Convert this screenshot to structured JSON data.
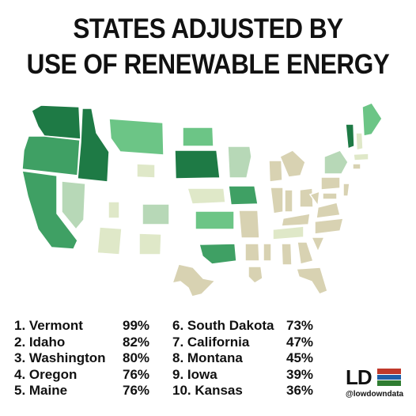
{
  "title": {
    "line1": "STATES ADJUSTED BY",
    "line2": "USE OF RENEWABLE ENERGY"
  },
  "rankings": [
    {
      "label": "1. Vermont",
      "value": "99%"
    },
    {
      "label": "2. Idaho",
      "value": "82%"
    },
    {
      "label": "3. Washington",
      "value": "80%"
    },
    {
      "label": "4. Oregon",
      "value": "76%"
    },
    {
      "label": "5. Maine",
      "value": "76%"
    },
    {
      "label": "6. South Dakota",
      "value": "73%"
    },
    {
      "label": "7. California",
      "value": "47%"
    },
    {
      "label": "8. Montana",
      "value": "45%"
    },
    {
      "label": "9. Iowa",
      "value": "39%"
    },
    {
      "label": "10. Kansas",
      "value": "36%"
    }
  ],
  "logo": {
    "text": "LD",
    "handle": "@lowdowndata",
    "colors": [
      "#c0392b",
      "#1f5fa8",
      "#2f7d32"
    ]
  },
  "colors": {
    "darkest": "#1e7a45",
    "dark": "#3fa064",
    "medium": "#6cc586",
    "light": "#b7d8b7",
    "pale": "#dfe8c8",
    "tan": "#d8d2b2"
  }
}
